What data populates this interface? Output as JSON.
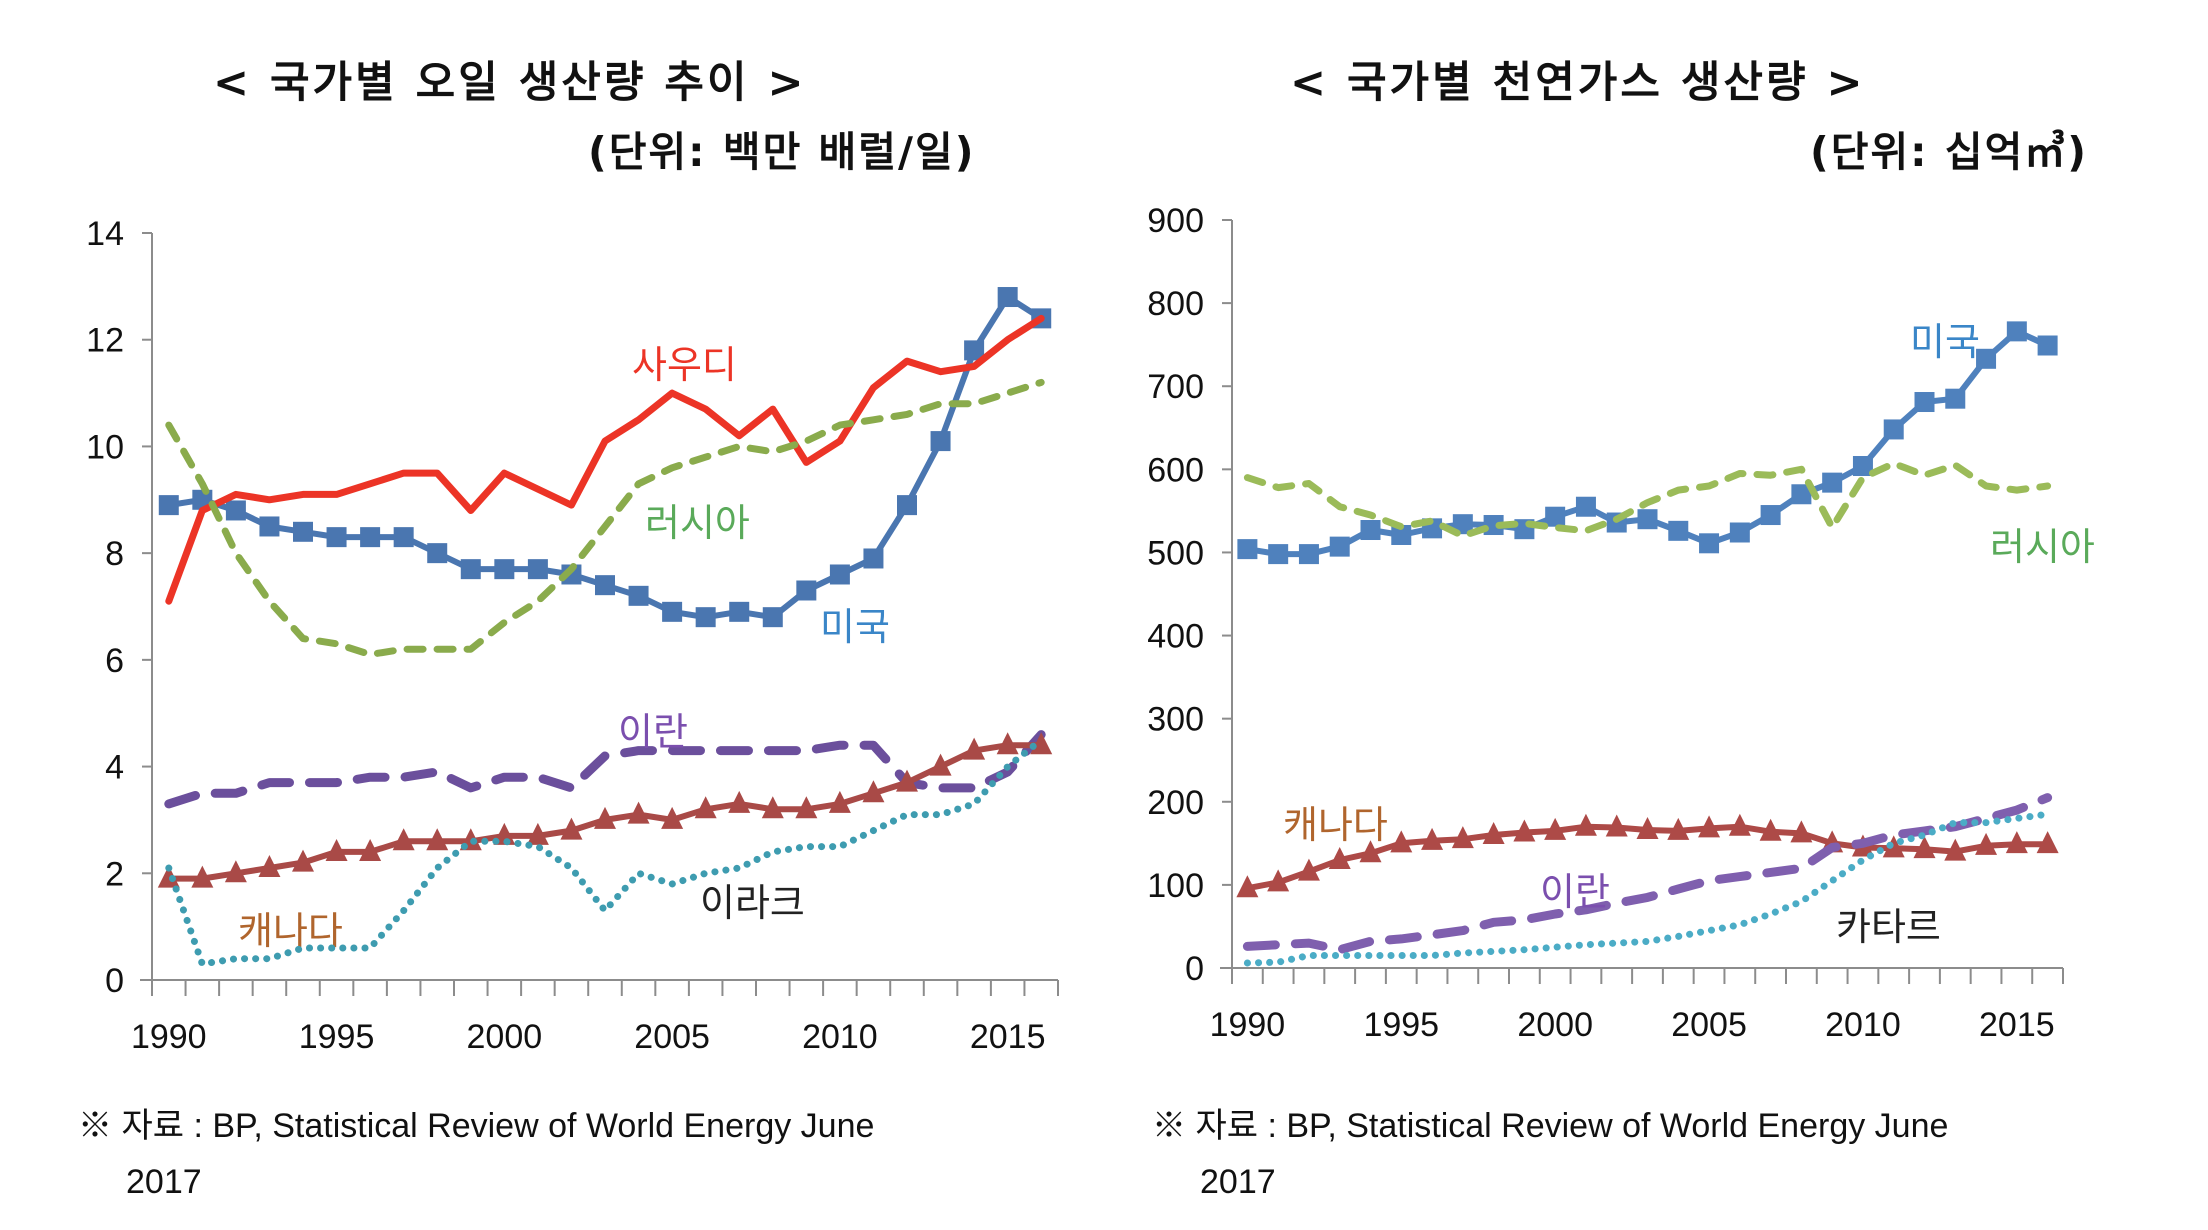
{
  "charts": [
    {
      "id": "oil",
      "title": "< 국가별 오일 생산량 추이 >",
      "unit": "(단위: 백만 배럴/일)",
      "source_line1": "※ 자료 : BP, Statistical Review of World Energy June",
      "source_line2": "2017"
    },
    {
      "id": "gas",
      "title": "< 국가별 천연가스 생산량 >",
      "unit": "(단위: 십억㎥)",
      "source_line1": "※ 자료 : BP, Statistical Review of World Energy June",
      "source_line2": "2017"
    }
  ],
  "chart_data": [
    {
      "type": "line",
      "title": "< 국가별 오일 생산량 추이 >",
      "subtitle": "(단위: 백만 배럴/일)",
      "xlabel": "",
      "ylabel": "",
      "ylim": [
        0,
        14
      ],
      "yticks": [
        0,
        2,
        4,
        6,
        8,
        10,
        12,
        14
      ],
      "xtick_labels": [
        "1990",
        "1995",
        "2000",
        "2005",
        "2010",
        "2015"
      ],
      "grid": false,
      "legend": "inline-labels",
      "x": [
        1990,
        1991,
        1992,
        1993,
        1994,
        1995,
        1996,
        1997,
        1998,
        1999,
        2000,
        2001,
        2002,
        2003,
        2004,
        2005,
        2006,
        2007,
        2008,
        2009,
        2010,
        2011,
        2012,
        2013,
        2014,
        2015,
        2016
      ],
      "series": [
        {
          "name": "미국",
          "color": "#4a76b0",
          "style": "solid-square",
          "values": [
            8.9,
            9.0,
            8.8,
            8.5,
            8.4,
            8.3,
            8.3,
            8.3,
            8.0,
            7.7,
            7.7,
            7.7,
            7.6,
            7.4,
            7.2,
            6.9,
            6.8,
            6.9,
            6.8,
            7.3,
            7.6,
            7.9,
            8.9,
            10.1,
            11.8,
            12.8,
            12.4
          ]
        },
        {
          "name": "사우디",
          "color": "#ec3426",
          "style": "solid",
          "values": [
            7.1,
            8.8,
            9.1,
            9.0,
            9.1,
            9.1,
            9.3,
            9.5,
            9.5,
            8.8,
            9.5,
            9.2,
            8.9,
            10.1,
            10.5,
            11.0,
            10.7,
            10.2,
            10.7,
            9.7,
            10.1,
            11.1,
            11.6,
            11.4,
            11.5,
            12.0,
            12.4
          ]
        },
        {
          "name": "러시아",
          "color": "#8aab4c",
          "style": "dashed",
          "values": [
            10.4,
            9.3,
            8.0,
            7.1,
            6.4,
            6.3,
            6.1,
            6.2,
            6.2,
            6.2,
            6.7,
            7.1,
            7.7,
            8.5,
            9.3,
            9.6,
            9.8,
            10.0,
            9.9,
            10.1,
            10.4,
            10.5,
            10.6,
            10.8,
            10.8,
            11.0,
            11.2
          ]
        },
        {
          "name": "이란",
          "color": "#6b4f9c",
          "style": "long-dash",
          "values": [
            3.3,
            3.5,
            3.5,
            3.7,
            3.7,
            3.7,
            3.8,
            3.8,
            3.9,
            3.6,
            3.8,
            3.8,
            3.6,
            4.2,
            4.3,
            4.3,
            4.3,
            4.3,
            4.3,
            4.3,
            4.4,
            4.4,
            3.7,
            3.6,
            3.6,
            3.9,
            4.6
          ]
        },
        {
          "name": "캐나다",
          "color": "#a94a47",
          "style": "solid-triangle",
          "values": [
            1.9,
            1.9,
            2.0,
            2.1,
            2.2,
            2.4,
            2.4,
            2.6,
            2.6,
            2.6,
            2.7,
            2.7,
            2.8,
            3.0,
            3.1,
            3.0,
            3.2,
            3.3,
            3.2,
            3.2,
            3.3,
            3.5,
            3.7,
            4.0,
            4.3,
            4.4,
            4.4
          ]
        },
        {
          "name": "이라크",
          "color": "#3e9cb0",
          "style": "dotted",
          "values": [
            2.1,
            0.3,
            0.4,
            0.4,
            0.6,
            0.6,
            0.6,
            1.3,
            2.1,
            2.6,
            2.6,
            2.5,
            2.1,
            1.3,
            2.0,
            1.8,
            2.0,
            2.1,
            2.4,
            2.5,
            2.5,
            2.8,
            3.1,
            3.1,
            3.3,
            4.0,
            4.5
          ]
        }
      ],
      "label_colors": {
        "미국": "#3a86c8",
        "사우디": "#ec3426",
        "러시아": "#5aaa5a",
        "이란": "#7b4fae",
        "캐나다": "#b0652d",
        "이라크": "#222222"
      }
    },
    {
      "type": "line",
      "title": "< 국가별 천연가스 생산량 >",
      "subtitle": "(단위: 십억㎥)",
      "xlabel": "",
      "ylabel": "",
      "ylim": [
        0,
        900
      ],
      "yticks": [
        0,
        100,
        200,
        300,
        400,
        500,
        600,
        700,
        800,
        900
      ],
      "xtick_labels": [
        "1990",
        "1995",
        "2000",
        "2005",
        "2010",
        "2015"
      ],
      "grid": false,
      "legend": "inline-labels",
      "x": [
        1990,
        1991,
        1992,
        1993,
        1994,
        1995,
        1996,
        1997,
        1998,
        1999,
        2000,
        2001,
        2002,
        2003,
        2004,
        2005,
        2006,
        2007,
        2008,
        2009,
        2010,
        2011,
        2012,
        2013,
        2014,
        2015,
        2016
      ],
      "series": [
        {
          "name": "미국",
          "color": "#4f81bd",
          "style": "solid-square",
          "values": [
            504,
            498,
            498,
            507,
            527,
            521,
            529,
            534,
            533,
            528,
            543,
            555,
            536,
            540,
            526,
            511,
            524,
            545,
            570,
            584,
            604,
            648,
            681,
            685,
            733,
            766,
            749
          ]
        },
        {
          "name": "러시아",
          "color": "#9bbb59",
          "style": "dashed",
          "values": [
            590,
            578,
            583,
            555,
            545,
            531,
            538,
            520,
            532,
            535,
            530,
            526,
            540,
            560,
            575,
            580,
            595,
            593,
            600,
            530,
            590,
            607,
            593,
            605,
            580,
            575,
            580
          ]
        },
        {
          "name": "캐나다",
          "color": "#ad4a47",
          "style": "solid-triangle",
          "values": [
            96,
            103,
            116,
            130,
            138,
            150,
            153,
            155,
            160,
            163,
            165,
            170,
            169,
            166,
            165,
            168,
            170,
            164,
            162,
            150,
            145,
            144,
            143,
            140,
            147,
            149,
            149
          ]
        },
        {
          "name": "이란",
          "color": "#7f5fae",
          "style": "long-dash",
          "values": [
            26,
            28,
            30,
            22,
            32,
            35,
            40,
            45,
            55,
            58,
            65,
            70,
            78,
            85,
            95,
            105,
            110,
            115,
            120,
            145,
            150,
            160,
            165,
            170,
            180,
            190,
            205
          ]
        },
        {
          "name": "카타르",
          "color": "#4bacc6",
          "style": "dotted",
          "values": [
            6,
            7,
            15,
            15,
            15,
            15,
            15,
            18,
            20,
            22,
            25,
            28,
            30,
            32,
            38,
            45,
            52,
            65,
            80,
            105,
            130,
            150,
            160,
            175,
            175,
            180,
            185
          ]
        }
      ],
      "label_colors": {
        "미국": "#3a86c8",
        "러시아": "#5aaa5a",
        "캐나다": "#b0652d",
        "이란": "#7b4fae",
        "카타르": "#222222"
      }
    }
  ]
}
